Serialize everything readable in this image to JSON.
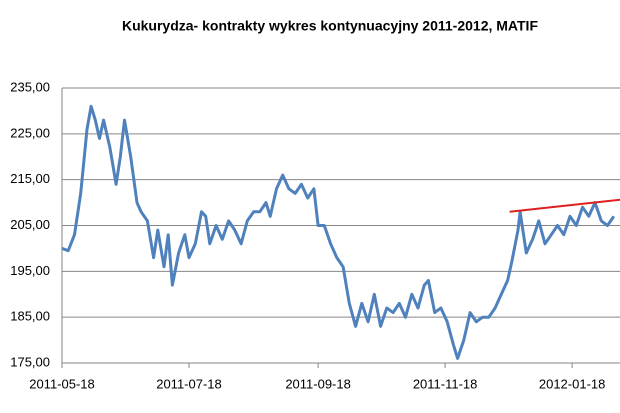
{
  "chart_data": {
    "type": "line",
    "title": "Kukurydza- kontrakty wykres kontynuacyjny 2011-2012,  MATIF",
    "x": [
      "2011-05-18",
      "2011-05-21",
      "2011-05-24",
      "2011-05-27",
      "2011-05-30",
      "2011-06-01",
      "2011-06-03",
      "2011-06-05",
      "2011-06-07",
      "2011-06-10",
      "2011-06-13",
      "2011-06-15",
      "2011-06-17",
      "2011-06-20",
      "2011-06-23",
      "2011-06-25",
      "2011-06-28",
      "2011-07-01",
      "2011-07-03",
      "2011-07-06",
      "2011-07-08",
      "2011-07-10",
      "2011-07-13",
      "2011-07-16",
      "2011-07-18",
      "2011-07-21",
      "2011-07-24",
      "2011-07-26",
      "2011-07-28",
      "2011-07-31",
      "2011-08-03",
      "2011-08-06",
      "2011-08-09",
      "2011-08-12",
      "2011-08-15",
      "2011-08-18",
      "2011-08-21",
      "2011-08-24",
      "2011-08-26",
      "2011-08-29",
      "2011-09-01",
      "2011-09-04",
      "2011-09-07",
      "2011-09-10",
      "2011-09-13",
      "2011-09-16",
      "2011-09-18",
      "2011-09-21",
      "2011-09-24",
      "2011-09-27",
      "2011-09-30",
      "2011-10-03",
      "2011-10-06",
      "2011-10-09",
      "2011-10-12",
      "2011-10-15",
      "2011-10-18",
      "2011-10-21",
      "2011-10-24",
      "2011-10-27",
      "2011-10-30",
      "2011-11-02",
      "2011-11-05",
      "2011-11-08",
      "2011-11-10",
      "2011-11-13",
      "2011-11-16",
      "2011-11-19",
      "2011-11-22",
      "2011-11-24",
      "2011-11-27",
      "2011-11-30",
      "2011-12-03",
      "2011-12-06",
      "2011-12-09",
      "2011-12-12",
      "2011-12-15",
      "2011-12-18",
      "2011-12-20",
      "2011-12-23",
      "2011-12-24",
      "2011-12-27",
      "2011-12-30",
      "2012-01-02",
      "2012-01-05",
      "2012-01-08",
      "2012-01-11",
      "2012-01-14",
      "2012-01-17",
      "2012-01-20",
      "2012-01-23",
      "2012-01-26",
      "2012-01-29",
      "2012-02-01",
      "2012-02-04",
      "2012-02-07"
    ],
    "series": [
      {
        "color": "#4f81bd",
        "values": [
          200,
          199.5,
          203,
          212,
          226,
          231,
          228,
          224,
          228,
          222,
          214,
          220,
          228,
          220,
          210,
          208,
          206,
          198,
          204,
          196,
          203,
          192,
          199,
          203,
          198,
          201,
          208,
          207,
          201,
          205,
          202,
          206,
          204,
          201,
          206,
          208,
          208,
          210,
          207,
          213,
          216,
          213,
          212,
          214,
          211,
          213,
          205,
          205,
          201,
          198,
          196,
          188,
          183,
          188,
          184,
          190,
          183,
          187,
          186,
          188,
          185,
          190,
          187,
          192,
          193,
          186,
          187,
          184,
          179,
          176,
          180,
          186,
          184,
          185,
          185,
          187,
          190,
          193,
          197,
          204,
          208,
          199,
          202,
          206,
          201,
          203,
          205,
          203,
          207,
          205,
          209,
          207,
          210,
          206,
          205,
          207
        ]
      }
    ],
    "trend": {
      "color": "#e02020",
      "x": [
        "2011-12-19",
        "2012-02-10"
      ],
      "values": [
        208,
        210.6
      ]
    },
    "xlim": [
      "2011-05-18",
      "2012-02-10"
    ],
    "xticks": [
      "2011-05-18",
      "2011-07-18",
      "2011-09-18",
      "2011-11-18",
      "2012-01-18"
    ],
    "ylim": [
      175,
      235
    ],
    "yticks": [
      {
        "value": 175,
        "label": "175,00"
      },
      {
        "value": 185,
        "label": "185,00"
      },
      {
        "value": 195,
        "label": "195,00"
      },
      {
        "value": 205,
        "label": "205,00"
      },
      {
        "value": 215,
        "label": "215,00"
      },
      {
        "value": 225,
        "label": "225,00"
      },
      {
        "value": 235,
        "label": "235,00"
      }
    ],
    "grid": true
  }
}
